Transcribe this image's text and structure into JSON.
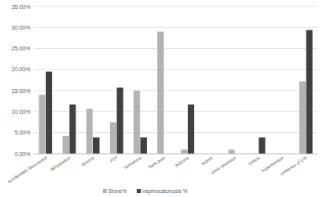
{
  "chart_data": {
    "type": "bar",
    "categories": [
      "accidentally discovered",
      "dehydration",
      "dysuria",
      "FTT",
      "hematuria",
      "flank pain",
      "polyuria",
      "sepsis",
      "urine retension",
      "rickets",
      "hypertension",
      "evidence of UTI"
    ],
    "series": [
      {
        "name": "Stone%",
        "color": "#b3b3b3",
        "values": [
          14,
          4.2,
          10.7,
          7.5,
          15,
          29,
          1,
          0,
          1,
          0,
          0,
          17.2
        ]
      },
      {
        "name": "nephrocalcinosis %",
        "color": "#404040",
        "values": [
          19.5,
          11.7,
          3.9,
          15.7,
          3.9,
          0,
          11.7,
          0,
          0,
          3.9,
          0,
          29.4
        ]
      }
    ],
    "ylim": [
      0,
      35
    ],
    "yticks": [
      {
        "value": 0,
        "label": "0.00%"
      },
      {
        "value": 5,
        "label": "5.00%"
      },
      {
        "value": 10,
        "label": "10.00%"
      },
      {
        "value": 15,
        "label": "15.00%"
      },
      {
        "value": 20,
        "label": "20.00%"
      },
      {
        "value": 25,
        "label": "25.00%"
      },
      {
        "value": 30,
        "label": "30.00%"
      },
      {
        "value": 35,
        "label": "35.00%"
      }
    ],
    "grid": true,
    "legend": "bottom"
  }
}
